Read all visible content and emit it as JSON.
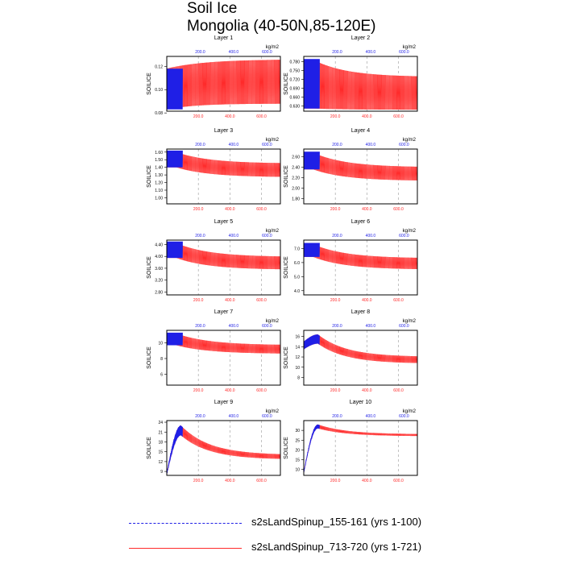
{
  "title": "Soil Ice",
  "subtitle": "Mongolia (40-50N,85-120E)",
  "colors": {
    "run1": "#1f1fe6",
    "run2": "#ff2a2a",
    "run2_light": "#ffb0b0",
    "axis": "#000000"
  },
  "chart_data": [
    {
      "type": "line",
      "panel_title": "Layer 1",
      "ylabel": "SOILICE",
      "units": "kg/m2",
      "ylim": [
        0.0815,
        0.1285
      ],
      "yticks": [
        "0.12",
        "0.10",
        "0.08"
      ],
      "ytick_values": [
        0.12,
        0.1,
        0.08
      ],
      "shape": "seasonal-rise",
      "series": [
        {
          "name": "s2sLandSpinup_155-161 (yrs 1-100)",
          "low": 0.083,
          "high": 0.118
        },
        {
          "name": "s2sLandSpinup_713-720 (yrs 1-721)",
          "low_start": 0.083,
          "low_end": 0.088,
          "high_start": 0.118,
          "high_end": 0.126
        }
      ]
    },
    {
      "type": "line",
      "panel_title": "Layer 2",
      "ylabel": "SOILICE",
      "units": "kg/m2",
      "ylim": [
        0.613,
        0.797
      ],
      "yticks": [
        "0.780",
        "0.750",
        "0.720",
        "0.690",
        "0.660",
        "0.630"
      ],
      "ytick_values": [
        0.78,
        0.75,
        0.72,
        0.69,
        0.66,
        0.63
      ],
      "shape": "decay",
      "series": [
        {
          "name": "s2sLandSpinup_155-161 (yrs 1-100)",
          "low": 0.622,
          "high": 0.788
        },
        {
          "name": "s2sLandSpinup_713-720 (yrs 1-721)",
          "low_start": 0.622,
          "low_end": 0.618,
          "high_start": 0.786,
          "high_end": 0.728
        }
      ]
    },
    {
      "type": "line",
      "panel_title": "Layer 3",
      "ylabel": "SOILICE",
      "units": "kg/m2",
      "ylim": [
        0.92,
        1.64
      ],
      "yticks": [
        "1.60",
        "1.50",
        "1.40",
        "1.30",
        "1.20",
        "1.10",
        "1.00"
      ],
      "ytick_values": [
        1.6,
        1.5,
        1.4,
        1.3,
        1.2,
        1.1,
        1.0
      ],
      "shape": "decay",
      "series": [
        {
          "name": "s2sLandSpinup_155-161 (yrs 1-100)",
          "low": 1.4,
          "high": 1.62
        },
        {
          "name": "s2sLandSpinup_713-720 (yrs 1-721)",
          "low_start": 1.4,
          "low_end": 1.27,
          "high_start": 1.6,
          "high_end": 1.45
        }
      ]
    },
    {
      "type": "line",
      "panel_title": "Layer 4",
      "ylabel": "SOILICE",
      "units": "kg/m2",
      "ylim": [
        1.7,
        2.75
      ],
      "yticks": [
        "2.60",
        "2.40",
        "2.20",
        "2.00",
        "1.80"
      ],
      "ytick_values": [
        2.6,
        2.4,
        2.2,
        2.0,
        1.8
      ],
      "shape": "decay",
      "series": [
        {
          "name": "s2sLandSpinup_155-161 (yrs 1-100)",
          "low": 2.36,
          "high": 2.7
        },
        {
          "name": "s2sLandSpinup_713-720 (yrs 1-721)",
          "low_start": 2.36,
          "low_end": 2.14,
          "high_start": 2.68,
          "high_end": 2.4
        }
      ]
    },
    {
      "type": "line",
      "panel_title": "Layer 5",
      "ylabel": "SOILICE",
      "units": "kg/m2",
      "ylim": [
        2.7,
        4.55
      ],
      "yticks": [
        "4.40",
        "4.00",
        "3.60",
        "3.20",
        "2.80"
      ],
      "ytick_values": [
        4.4,
        4.0,
        3.6,
        3.2,
        2.8
      ],
      "shape": "decay",
      "series": [
        {
          "name": "s2sLandSpinup_155-161 (yrs 1-100)",
          "low": 3.95,
          "high": 4.5
        },
        {
          "name": "s2sLandSpinup_713-720 (yrs 1-721)",
          "low_start": 3.95,
          "low_end": 3.55,
          "high_start": 4.45,
          "high_end": 3.98
        }
      ]
    },
    {
      "type": "line",
      "panel_title": "Layer 6",
      "ylabel": "SOILICE",
      "units": "kg/m2",
      "ylim": [
        3.7,
        7.6
      ],
      "yticks": [
        "7.0",
        "6.0",
        "5.0",
        "4.0"
      ],
      "ytick_values": [
        7.0,
        6.0,
        5.0,
        4.0
      ],
      "shape": "decay",
      "series": [
        {
          "name": "s2sLandSpinup_155-161 (yrs 1-100)",
          "low": 6.4,
          "high": 7.4
        },
        {
          "name": "s2sLandSpinup_713-720 (yrs 1-721)",
          "low_start": 6.4,
          "low_end": 5.5,
          "high_start": 7.3,
          "high_end": 6.3
        }
      ]
    },
    {
      "type": "line",
      "panel_title": "Layer 7",
      "ylabel": "SOILICE",
      "units": "kg/m2",
      "ylim": [
        4.6,
        11.6
      ],
      "yticks": [
        "10",
        "8",
        "6"
      ],
      "ytick_values": [
        10,
        8,
        6
      ],
      "shape": "decay",
      "series": [
        {
          "name": "s2sLandSpinup_155-161 (yrs 1-100)",
          "low": 9.7,
          "high": 11.3
        },
        {
          "name": "s2sLandSpinup_713-720 (yrs 1-721)",
          "low_start": 9.7,
          "low_end": 8.6,
          "high_start": 11.2,
          "high_end": 9.7
        }
      ]
    },
    {
      "type": "line",
      "panel_title": "Layer 8",
      "ylabel": "SOILICE",
      "units": "kg/m2",
      "ylim": [
        6.5,
        17.2
      ],
      "yticks": [
        "16",
        "14",
        "12",
        "10",
        "8"
      ],
      "ytick_values": [
        16,
        14,
        12,
        10,
        8
      ],
      "shape": "peak-decay",
      "series": [
        {
          "name": "s2sLandSpinup_155-161 (yrs 1-100)",
          "low_start": 13.5,
          "low_peak": 14.6,
          "high_start": 15.0,
          "high_peak": 16.4
        },
        {
          "name": "s2sLandSpinup_713-720 (yrs 1-721)",
          "low_end": 10.7,
          "high_end": 12.0
        }
      ]
    },
    {
      "type": "line",
      "panel_title": "Layer 9",
      "ylabel": "SOILICE",
      "units": "kg/m2",
      "ylim": [
        7.8,
        24.5
      ],
      "yticks": [
        "24",
        "21",
        "18",
        "15",
        "12",
        "9"
      ],
      "ytick_values": [
        24,
        21,
        18,
        15,
        12,
        9
      ],
      "shape": "peak-decay",
      "series": [
        {
          "name": "s2sLandSpinup_155-161 (yrs 1-100)",
          "low_start": 8.0,
          "low_peak": 20.0,
          "high_start": 8.6,
          "high_peak": 23.0
        },
        {
          "name": "s2sLandSpinup_713-720 (yrs 1-721)",
          "low_end": 12.6,
          "high_end": 14.0
        }
      ]
    },
    {
      "type": "line",
      "panel_title": "Layer 10",
      "ylabel": "SOILICE",
      "units": "kg/m2",
      "ylim": [
        7.0,
        35.0
      ],
      "yticks": [
        "30",
        "25",
        "20",
        "15",
        "10"
      ],
      "ytick_values": [
        30,
        25,
        20,
        15,
        10
      ],
      "shape": "peak-decay",
      "series": [
        {
          "name": "s2sLandSpinup_155-161 (yrs 1-100)",
          "low_start": 8.0,
          "low_peak": 31.0,
          "high_start": 8.8,
          "high_peak": 33.0
        },
        {
          "name": "s2sLandSpinup_713-720 (yrs 1-721)",
          "low_end": 27.0,
          "high_end": 28.0
        }
      ]
    }
  ],
  "axes": {
    "blue_top_ticks": [
      "200.0",
      "400.0",
      "600.0"
    ],
    "blue_top_tick_values": [
      200,
      400,
      600
    ],
    "blue_top_range": [
      0,
      680
    ],
    "red_bottom_ticks": [
      "200.0",
      "400.0",
      "600.0"
    ],
    "red_bottom_tick_values": [
      200,
      400,
      600
    ],
    "red_bottom_range": [
      0,
      720
    ],
    "run1_years": 100
  },
  "legend": [
    {
      "label": "s2sLandSpinup_155-161 (yrs 1-100)",
      "style": "dashed",
      "color_key": "run1"
    },
    {
      "label": "s2sLandSpinup_713-720 (yrs 1-721)",
      "style": "solid",
      "color_key": "run2"
    }
  ]
}
